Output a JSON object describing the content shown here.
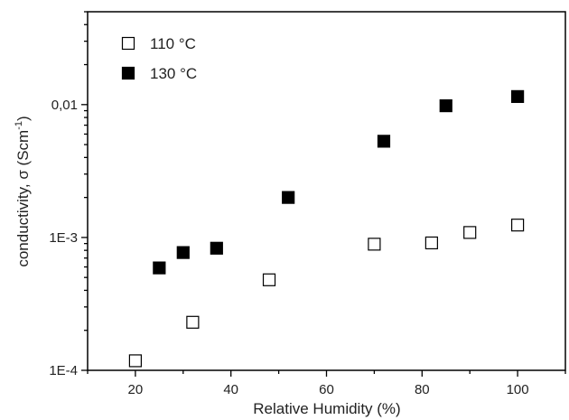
{
  "chart_data": {
    "type": "scatter",
    "xlabel": "Relative Humidity (%)",
    "ylabel_main": "conductivity, σ (Scm",
    "ylabel_sup": "-1",
    "ylabel_close": ")",
    "xlim": [
      10,
      110
    ],
    "ylim": [
      0.0001,
      0.05
    ],
    "yscale": "log",
    "x_ticks": [
      20,
      40,
      60,
      80,
      100
    ],
    "x_tick_labels": [
      "20",
      "40",
      "60",
      "80",
      "100"
    ],
    "y_ticks": [
      0.0001,
      0.001,
      0.01
    ],
    "y_tick_labels": [
      "1E-4",
      "1E-3",
      "0,01"
    ],
    "legend_position": "top-left",
    "series": [
      {
        "name": "110 °C",
        "marker": "open-square",
        "color": "#000000",
        "x": [
          20,
          32,
          48,
          70,
          82,
          90,
          100
        ],
        "y": [
          0.000118,
          0.00023,
          0.00048,
          0.00089,
          0.00091,
          0.00109,
          0.00124
        ]
      },
      {
        "name": "130 °C",
        "marker": "filled-square",
        "color": "#000000",
        "x": [
          25,
          30,
          37,
          52,
          72,
          85,
          100
        ],
        "y": [
          0.00059,
          0.00077,
          0.00083,
          0.002,
          0.0053,
          0.0098,
          0.0115
        ]
      }
    ]
  }
}
